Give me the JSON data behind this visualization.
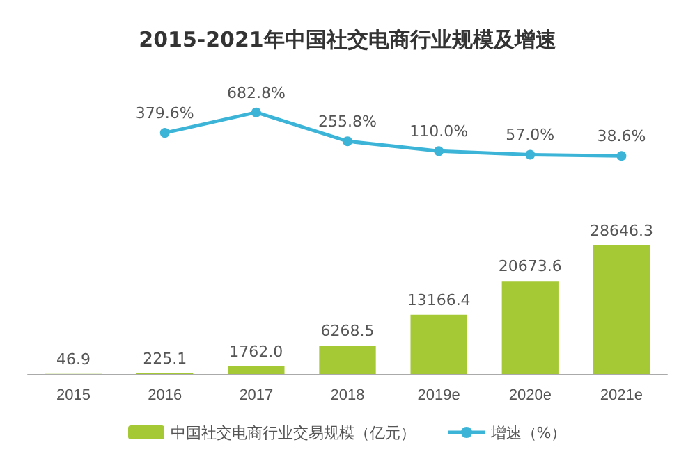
{
  "chart_data": [
    {
      "type": "line",
      "title": "2015-2021年中国社交电商行业规模及增速",
      "categories": [
        null,
        null,
        null,
        null,
        null,
        null,
        null
      ],
      "series": [
        {
          "name": "增速（%）",
          "color": "#3bb4d8",
          "values": [
            null,
            379.6,
            682.8,
            255.8,
            110.0,
            57.0,
            38.6
          ],
          "value_labels": [
            null,
            "379.6%",
            "682.8%",
            "255.8%",
            "110.0%",
            "57.0%",
            "38.6%"
          ]
        }
      ],
      "legend": "bottom",
      "marker": "circle"
    },
    {
      "type": "bar",
      "categories": [
        "2015",
        "2016",
        "2017",
        "2018",
        "2019e",
        "2020e",
        "2021e"
      ],
      "series": [
        {
          "name": "中国社交电商行业交易规模（亿元）",
          "color": "#a4c934",
          "values": [
            46.9,
            225.1,
            1762.0,
            6268.5,
            13166.4,
            20673.6,
            28646.3
          ],
          "value_labels": [
            "46.9",
            "225.1",
            "1762.0",
            "6268.5",
            "13166.4",
            "20673.6",
            "28646.3"
          ]
        }
      ],
      "legend": "bottom"
    }
  ]
}
